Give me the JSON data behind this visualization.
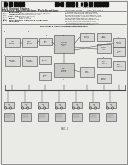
{
  "page_bg": "#e8e8e4",
  "paper_bg": "#f0efeb",
  "text_dark": "#3a3a3a",
  "text_med": "#555555",
  "text_light": "#777777",
  "line_color": "#444444",
  "box_fill": "#dcdcdc",
  "box_edge": "#555555",
  "barcode_color": "#111111",
  "header_strip_color": "#c8c8c4",
  "diagram_bg": "#eaeae6",
  "white": "#f5f5f2"
}
